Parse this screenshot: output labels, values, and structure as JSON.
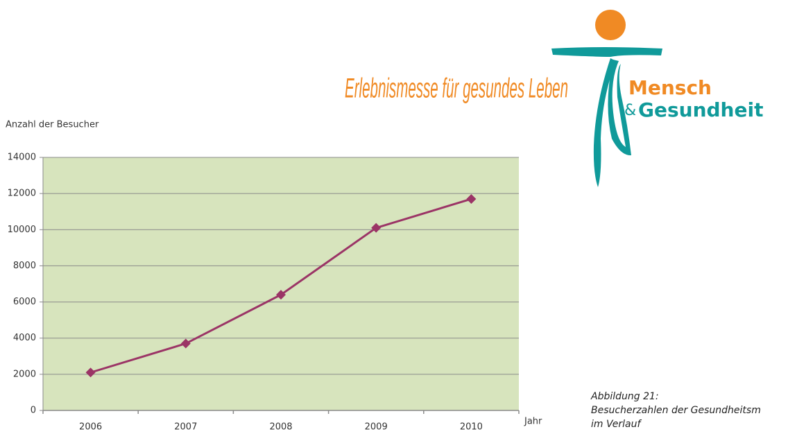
{
  "chart_data": {
    "type": "line",
    "title": "Erlebnismesse für gesundes Leben",
    "y_label": "Anzahl der Besucher",
    "x_label": "Jahr",
    "categories": [
      "2006",
      "2007",
      "2008",
      "2009",
      "2010"
    ],
    "values": [
      2100,
      3700,
      6400,
      10100,
      11700
    ],
    "color": "#9b3466",
    "ylim": [
      0,
      14000
    ],
    "yticks": [
      0,
      2000,
      4000,
      6000,
      8000,
      10000,
      12000,
      14000
    ],
    "grid": true
  },
  "logo": {
    "line1": "Mensch",
    "ampersand": "&",
    "line2": "Gesundheit"
  },
  "caption": [
    "Abbildung 21:",
    "Besucherzahlen der Gesundheitsm",
    "im Verlauf"
  ]
}
